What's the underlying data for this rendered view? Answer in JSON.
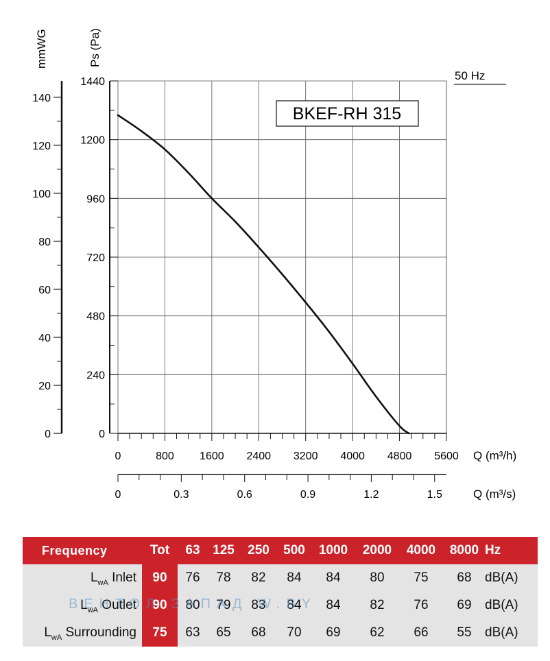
{
  "chart_data": {
    "type": "line",
    "model_label": "BKEF-RH 315",
    "frequency_label": "50 Hz",
    "y_axis_pa": {
      "label": "Ps (Pa)",
      "ticks": [
        0,
        240,
        480,
        720,
        960,
        1200,
        1440
      ],
      "range": [
        0,
        1440
      ]
    },
    "y_axis_mmwg": {
      "label": "mmWG",
      "ticks": [
        0,
        20,
        40,
        60,
        80,
        100,
        120,
        140
      ],
      "range": [
        0,
        146.8
      ]
    },
    "x_axis_m3h": {
      "label": "Q (m³/h)",
      "ticks": [
        0,
        800,
        1600,
        2400,
        3200,
        4000,
        4800,
        5600
      ],
      "range": [
        0,
        5600
      ]
    },
    "x_axis_m3s": {
      "label": "Q (m³/s)",
      "ticks": [
        0,
        0.3,
        0.6,
        0.9,
        1.2,
        1.5
      ],
      "tick_labels": [
        "0",
        "0.3",
        "0.6",
        "0.9",
        "1.2",
        "1.5"
      ],
      "range": [
        0,
        1.556
      ]
    },
    "grid": true,
    "series": [
      {
        "x": [
          0,
          400,
          800,
          1200,
          1600,
          2000,
          2400,
          2800,
          3200,
          3600,
          4000,
          4400,
          4800,
          4960
        ],
        "y": [
          1300,
          1235,
          1160,
          1065,
          960,
          865,
          760,
          650,
          535,
          415,
          285,
          150,
          30,
          0
        ]
      }
    ]
  },
  "sound_table": {
    "header": [
      "Frequency",
      "Tot",
      "63",
      "125",
      "250",
      "500",
      "1000",
      "2000",
      "4000",
      "8000",
      "Hz"
    ],
    "rows": [
      {
        "label_main": "L",
        "label_sub": "wA",
        "label_rest": " Inlet",
        "tot": "90",
        "values": [
          "76",
          "78",
          "82",
          "84",
          "84",
          "80",
          "75",
          "68"
        ],
        "unit": "dB(A)"
      },
      {
        "label_main": "L",
        "label_sub": "wA",
        "label_rest": " Outlet",
        "tot": "90",
        "values": [
          "80",
          "79",
          "83",
          "84",
          "84",
          "82",
          "76",
          "69"
        ],
        "unit": "dB(A)"
      },
      {
        "label_main": "L",
        "label_sub": "wA",
        "label_rest": " Surrounding",
        "tot": "75",
        "values": [
          "63",
          "65",
          "68",
          "70",
          "69",
          "62",
          "66",
          "55"
        ],
        "unit": "dB(A)"
      }
    ]
  },
  "watermark": "ВЕНТОЛ ЗАПАД    W.BY",
  "colors": {
    "accent": "#cc2229",
    "row_bg": "#e4e4e4",
    "grid": "#555555"
  }
}
